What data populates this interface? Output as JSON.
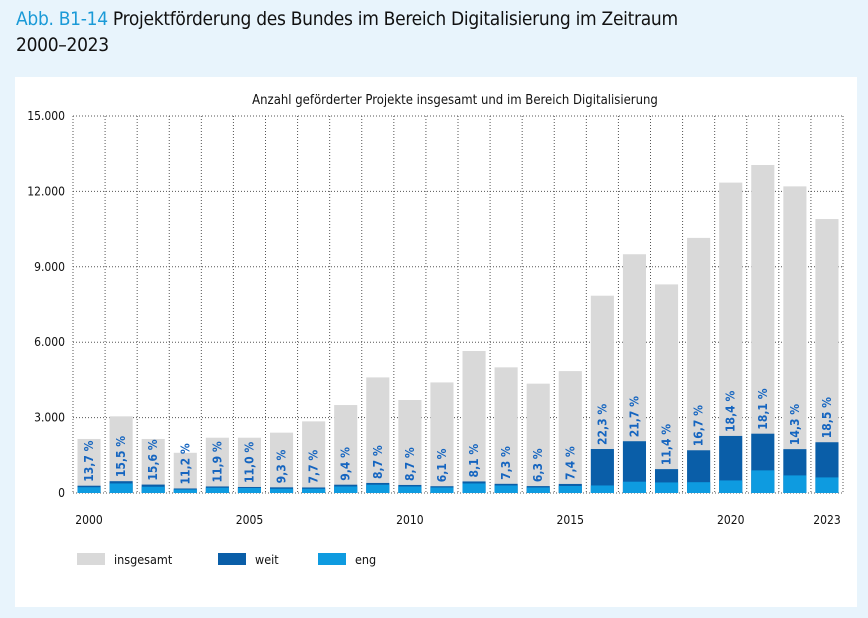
{
  "figure_label": "Abb. B1-14",
  "figure_title": "Projektförderung des Bundes im Bereich Digitalisierung im Zeitraum 2000–2023",
  "colors": {
    "insgesamt": "#d9d9d9",
    "weit": "#0a5ea8",
    "eng": "#0e9be0",
    "accent": "#1a9ad7",
    "pct_label": "#1565c0"
  },
  "chart_data": {
    "type": "bar",
    "title": "Anzahl geförderter Projekte insgesamt und im Bereich Digitalisierung",
    "xlabel": "",
    "ylabel": "",
    "ylim": [
      0,
      15000
    ],
    "yticks": [
      0,
      3000,
      6000,
      9000,
      12000,
      15000
    ],
    "ytick_labels": [
      "0",
      "3.000",
      "6.000",
      "9.000",
      "12.000",
      "15.000"
    ],
    "categories": [
      "2000",
      "2001",
      "2002",
      "2003",
      "2004",
      "2005",
      "2006",
      "2007",
      "2008",
      "2009",
      "2010",
      "2011",
      "2012",
      "2013",
      "2014",
      "2015",
      "2016",
      "2017",
      "2018",
      "2019",
      "2020",
      "2021",
      "2022",
      "2023"
    ],
    "xtick_labels_shown": [
      "2000",
      "2005",
      "2010",
      "2015",
      "2020",
      "2023"
    ],
    "grid": true,
    "legend_position": "bottom-left",
    "series": [
      {
        "name": "insgesamt",
        "values": [
          2150,
          3050,
          2150,
          1600,
          2200,
          2200,
          2400,
          2850,
          3500,
          4600,
          3700,
          4400,
          5650,
          5000,
          4350,
          4850,
          7850,
          9500,
          8300,
          10150,
          12350,
          13050,
          12200,
          10900
        ]
      },
      {
        "name": "weit",
        "values": [
          290,
          470,
          335,
          180,
          260,
          240,
          225,
          220,
          330,
          400,
          320,
          270,
          460,
          365,
          275,
          360,
          1750,
          2060,
          950,
          1700,
          2270,
          2360,
          1745,
          2020
        ]
      },
      {
        "name": "eng",
        "values": [
          230,
          380,
          250,
          140,
          210,
          200,
          170,
          170,
          260,
          330,
          260,
          220,
          380,
          300,
          220,
          280,
          300,
          450,
          420,
          430,
          500,
          900,
          700,
          620
        ]
      }
    ],
    "annotations": [
      "13,7 %",
      "15,5 %",
      "15,6 %",
      "11,2 %",
      "11,9 %",
      "11,0 %",
      "9,3 %",
      "7,7 %",
      "9,4 %",
      "8,7 %",
      "8,7 %",
      "6,1 %",
      "8,1 %",
      "7,3 %",
      "6,3 %",
      "7,4 %",
      "22,3 %",
      "21,7 %",
      "11,4 %",
      "16,7 %",
      "18,4 %",
      "18,1 %",
      "14,3 %",
      "18,5 %"
    ]
  },
  "legend": [
    {
      "label": "insgesamt",
      "key": "insgesamt"
    },
    {
      "label": "weit",
      "key": "weit"
    },
    {
      "label": "eng",
      "key": "eng"
    }
  ]
}
